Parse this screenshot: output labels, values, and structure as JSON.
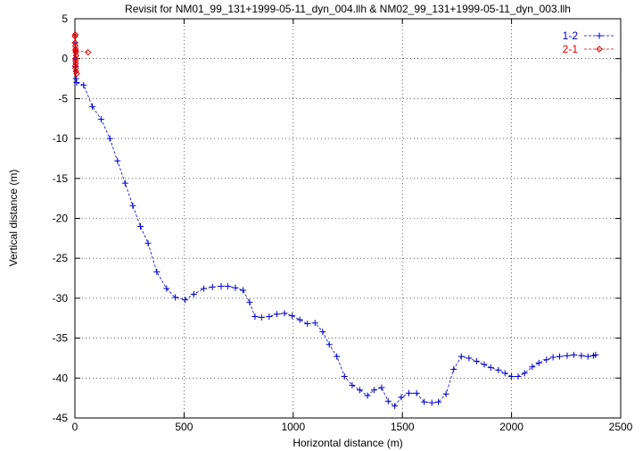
{
  "chart_data": {
    "type": "line",
    "title": "Revisit for NM01_99_131+1999-05-11_dyn_004.llh & NM02_99_131+1999-05-11_dyn_003.llh",
    "xlabel": "Horizontal distance (m)",
    "ylabel": "Vertical distance (m)",
    "xlim": [
      0,
      2500
    ],
    "ylim": [
      -45,
      5
    ],
    "xticks": [
      0,
      500,
      1000,
      1500,
      2000,
      2500
    ],
    "yticks": [
      5,
      0,
      -5,
      -10,
      -15,
      -20,
      -25,
      -30,
      -35,
      -40,
      -45
    ],
    "grid": true,
    "legend_position": "top-right",
    "series": [
      {
        "name": "1-2",
        "color": "#0000cc",
        "marker": "plus",
        "line": "dashed",
        "x": [
          0,
          2,
          3,
          5,
          8,
          40,
          80,
          120,
          160,
          195,
          230,
          265,
          300,
          335,
          375,
          420,
          460,
          505,
          545,
          590,
          630,
          670,
          700,
          735,
          770,
          800,
          825,
          855,
          890,
          925,
          960,
          995,
          1030,
          1065,
          1100,
          1135,
          1165,
          1200,
          1235,
          1270,
          1305,
          1340,
          1370,
          1405,
          1435,
          1465,
          1495,
          1530,
          1565,
          1600,
          1635,
          1665,
          1700,
          1735,
          1770,
          1805,
          1840,
          1875,
          1905,
          1940,
          1970,
          2000,
          2030,
          2060,
          2095,
          2125,
          2160,
          2190,
          2220,
          2255,
          2285,
          2320,
          2350,
          2375,
          2385
        ],
        "y": [
          2.0,
          0.0,
          -1.0,
          -2.5,
          -3.0,
          -3.3,
          -6.0,
          -7.6,
          -10.0,
          -12.8,
          -15.6,
          -18.4,
          -21.0,
          -23.1,
          -26.7,
          -28.8,
          -29.9,
          -30.2,
          -29.5,
          -28.8,
          -28.6,
          -28.5,
          -28.5,
          -28.7,
          -29.0,
          -30.5,
          -32.3,
          -32.4,
          -32.3,
          -32.0,
          -31.9,
          -32.2,
          -32.7,
          -33.2,
          -33.1,
          -34.2,
          -35.8,
          -37.3,
          -39.8,
          -40.9,
          -41.5,
          -42.2,
          -41.5,
          -41.2,
          -42.9,
          -43.5,
          -42.4,
          -41.9,
          -41.9,
          -43.0,
          -43.1,
          -43.0,
          -42.0,
          -38.9,
          -37.3,
          -37.5,
          -37.9,
          -38.3,
          -38.7,
          -39.0,
          -39.4,
          -39.8,
          -39.8,
          -39.4,
          -38.6,
          -38.1,
          -37.7,
          -37.4,
          -37.3,
          -37.2,
          -37.1,
          -37.2,
          -37.3,
          -37.2,
          -37.1
        ]
      },
      {
        "name": "2-1",
        "color": "#dd0000",
        "marker": "diamond",
        "line": "dashed",
        "x": [
          0,
          1,
          2,
          3,
          4,
          5,
          2,
          3,
          4,
          2,
          3,
          5,
          8,
          2,
          3,
          60
        ],
        "y": [
          2.8,
          2.0,
          1.6,
          1.2,
          0.8,
          0.4,
          0.0,
          -0.3,
          -0.6,
          -0.9,
          -1.2,
          -1.6,
          -1.9,
          3.0,
          1.0,
          0.8
        ]
      }
    ]
  }
}
